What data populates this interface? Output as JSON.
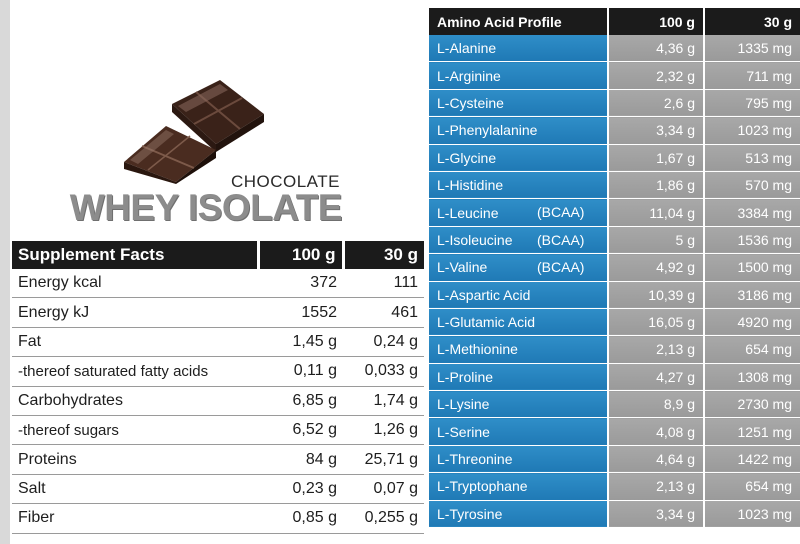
{
  "brand": {
    "flavor": "CHOCOLATE",
    "product": "WHEY ISOLATE",
    "hero_icon": "chocolate-pieces"
  },
  "supplement_facts": {
    "headers": [
      "Supplement Facts",
      "100 g",
      "30 g"
    ],
    "rows": [
      {
        "name": "Energy  kcal",
        "per100": "372",
        "per30": "111"
      },
      {
        "name": "Energy  kJ",
        "per100": "1552",
        "per30": "461"
      },
      {
        "name": "Fat",
        "per100": "1,45 g",
        "per30": "0,24 g"
      },
      {
        "name": "-thereof saturated fatty acids",
        "per100": "0,11 g",
        "per30": "0,033 g"
      },
      {
        "name": "Carbohydrates",
        "per100": "6,85 g",
        "per30": "1,74 g"
      },
      {
        "name": "-thereof sugars",
        "per100": "6,52 g",
        "per30": "1,26 g"
      },
      {
        "name": "Proteins",
        "per100": "84 g",
        "per30": "25,71 g"
      },
      {
        "name": "Salt",
        "per100": "0,23 g",
        "per30": "0,07 g"
      },
      {
        "name": "Fiber",
        "per100": "0,85 g",
        "per30": "0,255 g"
      }
    ]
  },
  "amino_acids": {
    "headers": [
      "Amino Acid Profile",
      "100 g",
      "30 g"
    ],
    "rows": [
      {
        "name": "L-Alanine",
        "tag": "",
        "per100": "4,36 g",
        "per30": "1335 mg"
      },
      {
        "name": "L-Arginine",
        "tag": "",
        "per100": "2,32 g",
        "per30": "711 mg"
      },
      {
        "name": "L-Cysteine",
        "tag": "",
        "per100": "2,6 g",
        "per30": "795 mg"
      },
      {
        "name": "L-Phenylalanine",
        "tag": "",
        "per100": "3,34 g",
        "per30": "1023 mg"
      },
      {
        "name": "L-Glycine",
        "tag": "",
        "per100": "1,67 g",
        "per30": "513 mg"
      },
      {
        "name": "L-Histidine",
        "tag": "",
        "per100": "1,86 g",
        "per30": "570 mg"
      },
      {
        "name": "L-Leucine",
        "tag": "(BCAA)",
        "per100": "11,04 g",
        "per30": "3384 mg"
      },
      {
        "name": "L-Isoleucine",
        "tag": "(BCAA)",
        "per100": "5 g",
        "per30": "1536 mg"
      },
      {
        "name": "L-Valine",
        "tag": "(BCAA)",
        "per100": "4,92 g",
        "per30": "1500 mg"
      },
      {
        "name": "L-Aspartic Acid",
        "tag": "",
        "per100": "10,39 g",
        "per30": "3186 mg"
      },
      {
        "name": "L-Glutamic Acid",
        "tag": "",
        "per100": "16,05 g",
        "per30": "4920 mg"
      },
      {
        "name": "L-Methionine",
        "tag": "",
        "per100": "2,13 g",
        "per30": "654 mg"
      },
      {
        "name": "L-Proline",
        "tag": "",
        "per100": "4,27 g",
        "per30": "1308 mg"
      },
      {
        "name": "L-Lysine",
        "tag": "",
        "per100": "8,9 g",
        "per30": "2730 mg"
      },
      {
        "name": "L-Serine",
        "tag": "",
        "per100": "4,08 g",
        "per30": "1251 mg"
      },
      {
        "name": "L-Threonine",
        "tag": "",
        "per100": "4,64 g",
        "per30": "1422 mg"
      },
      {
        "name": "L-Tryptophane",
        "tag": "",
        "per100": "2,13 g",
        "per30": "654 mg"
      },
      {
        "name": "L-Tyrosine",
        "tag": "",
        "per100": "3,34 g",
        "per30": "1023 mg"
      }
    ]
  },
  "colors": {
    "header_bg": "#1b1b1b",
    "amino_name_bg": "#2586c0",
    "amino_value_bg": "#a1a1a1",
    "brand_gray": "#8c8c8c"
  }
}
